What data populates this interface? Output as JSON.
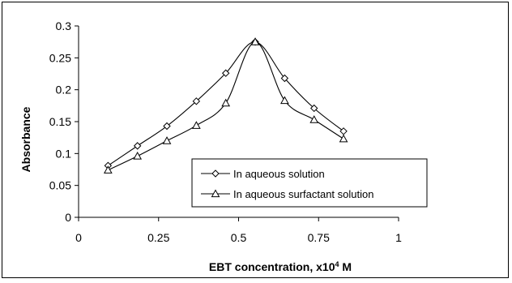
{
  "chart_data": {
    "type": "line",
    "xlabel": "EBT concentration, x10",
    "xlabel_sup": "4",
    "xlabel_suffix": " M",
    "ylabel": "Absorbance",
    "xlim": [
      0,
      1
    ],
    "ylim": [
      0,
      0.3
    ],
    "x_ticks": [
      "0",
      "0.25",
      "0.5",
      "0.75",
      "1"
    ],
    "x_tick_values": [
      0,
      0.25,
      0.5,
      0.75,
      1
    ],
    "y_ticks": [
      "0",
      "0.05",
      "0.1",
      "0.15",
      "0.2",
      "0.25",
      "0.3"
    ],
    "y_tick_values": [
      0,
      0.05,
      0.1,
      0.15,
      0.2,
      0.25,
      0.3
    ],
    "grid": false,
    "legend_position": "bottom-right",
    "series": [
      {
        "name": "In aqueous solution",
        "marker": "diamond",
        "x": [
          0.092,
          0.184,
          0.276,
          0.368,
          0.46,
          0.552,
          0.644,
          0.736,
          0.828
        ],
        "y": [
          0.081,
          0.112,
          0.143,
          0.182,
          0.226,
          0.275,
          0.218,
          0.171,
          0.135
        ]
      },
      {
        "name": "In aqueous surfactant solution",
        "marker": "triangle",
        "x": [
          0.092,
          0.184,
          0.276,
          0.368,
          0.46,
          0.552,
          0.644,
          0.736,
          0.828
        ],
        "y": [
          0.074,
          0.096,
          0.12,
          0.144,
          0.179,
          0.275,
          0.183,
          0.153,
          0.123
        ]
      }
    ]
  }
}
